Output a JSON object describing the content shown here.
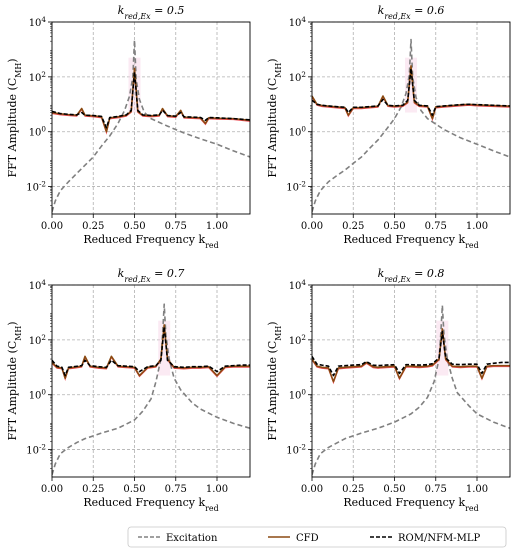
{
  "chart_data": [
    {
      "type": "line",
      "title": "k_red,Ex = 0.5",
      "xlabel": "Reduced Frequency k_red",
      "ylabel": "FFT Amplitude (C_MH)",
      "xscale": "linear",
      "yscale": "log",
      "xlim": [
        0.0,
        1.2
      ],
      "ylim": [
        0.001,
        10000
      ],
      "xticks": [
        "0.00",
        "0.25",
        "0.50",
        "0.75",
        "1.00"
      ],
      "yticks": [
        "10^-2",
        "10^0",
        "10^2",
        "10^4"
      ],
      "grid": true,
      "excitation_peak": 0.5,
      "series": [
        {
          "name": "Excitation",
          "color": "#808080",
          "style": "dashed",
          "x": [
            0.0,
            0.02,
            0.05,
            0.1,
            0.15,
            0.2,
            0.25,
            0.3,
            0.35,
            0.4,
            0.44,
            0.47,
            0.49,
            0.5,
            0.51,
            0.53,
            0.56,
            0.6,
            0.7,
            0.8,
            0.9,
            1.0,
            1.1,
            1.2
          ],
          "y": [
            0.0012,
            0.003,
            0.007,
            0.015,
            0.03,
            0.06,
            0.12,
            0.3,
            0.7,
            2.0,
            6,
            20,
            100,
            2200,
            80,
            15,
            5,
            3,
            1.6,
            0.9,
            0.55,
            0.35,
            0.2,
            0.12
          ]
        },
        {
          "name": "CFD",
          "color": "#8B4A12",
          "style": "solid",
          "x": [
            0.0,
            0.05,
            0.1,
            0.15,
            0.18,
            0.2,
            0.25,
            0.3,
            0.33,
            0.35,
            0.4,
            0.45,
            0.48,
            0.5,
            0.52,
            0.55,
            0.6,
            0.65,
            0.67,
            0.7,
            0.75,
            0.78,
            0.8,
            0.85,
            0.9,
            0.93,
            0.95,
            1.0,
            1.1,
            1.2
          ],
          "y": [
            5,
            4.5,
            4.2,
            4.0,
            7,
            4.0,
            3.8,
            3.5,
            1.0,
            3.2,
            3.5,
            4.0,
            5.5,
            200,
            5.5,
            4.0,
            3.8,
            4.0,
            7,
            3.8,
            3.6,
            6,
            3.4,
            3.3,
            3.2,
            2.0,
            3.2,
            3.1,
            3.0,
            2.6
          ]
        },
        {
          "name": "ROM/NFM-MLP",
          "color": "#000000",
          "style": "dashed",
          "x": [
            0.0,
            0.05,
            0.1,
            0.15,
            0.18,
            0.2,
            0.25,
            0.3,
            0.33,
            0.35,
            0.4,
            0.45,
            0.48,
            0.5,
            0.52,
            0.55,
            0.6,
            0.65,
            0.67,
            0.7,
            0.75,
            0.78,
            0.8,
            0.85,
            0.9,
            0.93,
            0.95,
            1.0,
            1.1,
            1.2
          ],
          "y": [
            5.5,
            4.6,
            4.3,
            4.1,
            5,
            4.0,
            3.9,
            3.6,
            1.4,
            3.3,
            3.6,
            4.1,
            6,
            150,
            6,
            4.1,
            3.9,
            4.1,
            6,
            3.9,
            3.7,
            5,
            3.5,
            3.4,
            3.3,
            2.6,
            3.3,
            3.2,
            3.0,
            2.7
          ]
        }
      ]
    },
    {
      "type": "line",
      "title": "k_red,Ex = 0.6",
      "xlabel": "Reduced Frequency k_red",
      "ylabel": "FFT Amplitude (C_MH)",
      "xscale": "linear",
      "yscale": "log",
      "xlim": [
        0.0,
        1.2
      ],
      "ylim": [
        0.001,
        10000
      ],
      "xticks": [
        "0.00",
        "0.25",
        "0.50",
        "0.75",
        "1.00"
      ],
      "yticks": [
        "10^-2",
        "10^0",
        "10^2",
        "10^4"
      ],
      "grid": true,
      "excitation_peak": 0.6,
      "series": [
        {
          "name": "Excitation",
          "color": "#808080",
          "style": "dashed",
          "x": [
            0.0,
            0.02,
            0.05,
            0.1,
            0.15,
            0.2,
            0.25,
            0.3,
            0.35,
            0.4,
            0.45,
            0.5,
            0.54,
            0.57,
            0.59,
            0.6,
            0.61,
            0.63,
            0.66,
            0.7,
            0.8,
            0.9,
            1.0,
            1.1,
            1.2
          ],
          "y": [
            0.0012,
            0.003,
            0.007,
            0.015,
            0.025,
            0.04,
            0.07,
            0.12,
            0.25,
            0.5,
            1.2,
            3,
            8,
            25,
            120,
            2300,
            100,
            18,
            6,
            3,
            1.2,
            0.6,
            0.35,
            0.2,
            0.12
          ]
        },
        {
          "name": "CFD",
          "color": "#8B4A12",
          "style": "solid",
          "x": [
            0.0,
            0.03,
            0.06,
            0.1,
            0.15,
            0.2,
            0.22,
            0.25,
            0.3,
            0.35,
            0.4,
            0.43,
            0.46,
            0.5,
            0.55,
            0.58,
            0.6,
            0.62,
            0.65,
            0.7,
            0.73,
            0.75,
            0.8,
            0.85,
            0.9,
            0.95,
            1.0,
            1.1,
            1.2
          ],
          "y": [
            20,
            10,
            9,
            8.5,
            8,
            7.5,
            4,
            7.5,
            7.5,
            8,
            8.5,
            20,
            9,
            8.5,
            9,
            12,
            250,
            12,
            9,
            8.5,
            3,
            8,
            8.5,
            9,
            9.5,
            10,
            9.5,
            9,
            8.5
          ]
        },
        {
          "name": "ROM/NFM-MLP",
          "color": "#000000",
          "style": "dashed",
          "x": [
            0.0,
            0.03,
            0.06,
            0.1,
            0.15,
            0.2,
            0.22,
            0.25,
            0.3,
            0.35,
            0.4,
            0.43,
            0.46,
            0.5,
            0.55,
            0.58,
            0.6,
            0.62,
            0.65,
            0.7,
            0.73,
            0.75,
            0.8,
            0.85,
            0.9,
            0.95,
            1.0,
            1.1,
            1.2
          ],
          "y": [
            14,
            10,
            9.2,
            8.7,
            8.2,
            7.8,
            5,
            7.8,
            7.8,
            8.2,
            8.7,
            15,
            9.2,
            8.7,
            9.2,
            14,
            200,
            14,
            9.2,
            8.7,
            4,
            8.2,
            8.7,
            9.2,
            9.7,
            10,
            9.7,
            9.2,
            8.7
          ]
        }
      ]
    },
    {
      "type": "line",
      "title": "k_red,Ex = 0.7",
      "xlabel": "Reduced Frequency k_red",
      "ylabel": "FFT Amplitude (C_MH)",
      "xscale": "linear",
      "yscale": "log",
      "xlim": [
        0.0,
        1.2
      ],
      "ylim": [
        0.001,
        10000
      ],
      "xticks": [
        "0.00",
        "0.25",
        "0.50",
        "0.75",
        "1.00"
      ],
      "yticks": [
        "10^-2",
        "10^0",
        "10^2",
        "10^4"
      ],
      "grid": true,
      "excitation_peak": 0.68,
      "series": [
        {
          "name": "Excitation",
          "color": "#808080",
          "style": "dashed",
          "x": [
            0.0,
            0.02,
            0.05,
            0.1,
            0.15,
            0.2,
            0.3,
            0.4,
            0.5,
            0.55,
            0.6,
            0.63,
            0.66,
            0.67,
            0.68,
            0.69,
            0.71,
            0.74,
            0.78,
            0.85,
            0.9,
            1.0,
            1.1,
            1.2
          ],
          "y": [
            0.0012,
            0.003,
            0.007,
            0.012,
            0.018,
            0.025,
            0.04,
            0.06,
            0.12,
            0.25,
            0.7,
            3,
            20,
            150,
            2000,
            150,
            20,
            4,
            1.5,
            0.5,
            0.3,
            0.15,
            0.09,
            0.06
          ]
        },
        {
          "name": "CFD",
          "color": "#8B4A12",
          "style": "solid",
          "x": [
            0.0,
            0.03,
            0.06,
            0.08,
            0.1,
            0.13,
            0.18,
            0.2,
            0.23,
            0.28,
            0.33,
            0.36,
            0.4,
            0.45,
            0.5,
            0.53,
            0.58,
            0.63,
            0.66,
            0.68,
            0.7,
            0.74,
            0.8,
            0.85,
            0.9,
            0.95,
            1.0,
            1.05,
            1.1,
            1.15,
            1.2
          ],
          "y": [
            15,
            10,
            9.5,
            4,
            9.5,
            10,
            11,
            25,
            11,
            10,
            9.5,
            25,
            11,
            10.5,
            10,
            5,
            10,
            11,
            20,
            350,
            20,
            10,
            9.5,
            10,
            10,
            10.5,
            5,
            10.5,
            11,
            11,
            11
          ]
        },
        {
          "name": "ROM/NFM-MLP",
          "color": "#000000",
          "style": "dashed",
          "x": [
            0.0,
            0.03,
            0.06,
            0.08,
            0.1,
            0.13,
            0.18,
            0.2,
            0.23,
            0.28,
            0.33,
            0.36,
            0.4,
            0.45,
            0.5,
            0.53,
            0.58,
            0.63,
            0.66,
            0.68,
            0.7,
            0.74,
            0.8,
            0.85,
            0.9,
            0.95,
            1.0,
            1.05,
            1.1,
            1.15,
            1.2
          ],
          "y": [
            18,
            11,
            10,
            5,
            10,
            10.5,
            11.5,
            18,
            11.5,
            10.5,
            10,
            18,
            11.5,
            11,
            10.5,
            7,
            10.5,
            11.5,
            18,
            300,
            18,
            10.5,
            10,
            10.5,
            10.5,
            11,
            7,
            11,
            11.5,
            12,
            12
          ]
        }
      ]
    },
    {
      "type": "line",
      "title": "k_red,Ex = 0.8",
      "xlabel": "Reduced Frequency k_red",
      "ylabel": "FFT Amplitude (C_MH)",
      "xscale": "linear",
      "yscale": "log",
      "xlim": [
        0.0,
        1.2
      ],
      "ylim": [
        0.001,
        10000
      ],
      "xticks": [
        "0.00",
        "0.25",
        "0.50",
        "0.75",
        "1.00"
      ],
      "yticks": [
        "10^-2",
        "10^0",
        "10^2",
        "10^4"
      ],
      "grid": true,
      "excitation_peak": 0.79,
      "series": [
        {
          "name": "Excitation",
          "color": "#808080",
          "style": "dashed",
          "x": [
            0.0,
            0.02,
            0.05,
            0.1,
            0.2,
            0.3,
            0.4,
            0.5,
            0.6,
            0.65,
            0.7,
            0.74,
            0.77,
            0.78,
            0.79,
            0.8,
            0.82,
            0.85,
            0.88,
            0.95,
            1.0,
            1.1,
            1.2
          ],
          "y": [
            0.0012,
            0.003,
            0.007,
            0.012,
            0.025,
            0.04,
            0.06,
            0.1,
            0.2,
            0.35,
            0.8,
            3,
            20,
            150,
            1800,
            150,
            20,
            4,
            1.2,
            0.4,
            0.2,
            0.1,
            0.06
          ]
        },
        {
          "name": "CFD",
          "color": "#8B4A12",
          "style": "solid",
          "x": [
            0.0,
            0.03,
            0.06,
            0.1,
            0.13,
            0.16,
            0.2,
            0.25,
            0.3,
            0.33,
            0.37,
            0.4,
            0.45,
            0.5,
            0.53,
            0.57,
            0.6,
            0.65,
            0.7,
            0.73,
            0.77,
            0.79,
            0.81,
            0.85,
            0.9,
            0.95,
            1.0,
            1.03,
            1.06,
            1.1,
            1.15,
            1.2
          ],
          "y": [
            20,
            11,
            10,
            9.5,
            3,
            9.5,
            10,
            10.5,
            11,
            15,
            10.5,
            10,
            10.5,
            11,
            4,
            11,
            11,
            10.5,
            11,
            12,
            20,
            250,
            20,
            11,
            10.5,
            11,
            11,
            4,
            11,
            11.5,
            11.5,
            11.5
          ]
        },
        {
          "name": "ROM/NFM-MLP",
          "color": "#000000",
          "style": "dashed",
          "x": [
            0.0,
            0.03,
            0.06,
            0.1,
            0.13,
            0.16,
            0.2,
            0.25,
            0.3,
            0.33,
            0.37,
            0.4,
            0.45,
            0.5,
            0.53,
            0.57,
            0.6,
            0.65,
            0.7,
            0.73,
            0.77,
            0.79,
            0.81,
            0.85,
            0.9,
            0.95,
            1.0,
            1.03,
            1.06,
            1.1,
            1.15,
            1.2
          ],
          "y": [
            25,
            13,
            12,
            11,
            5,
            11,
            11.5,
            12,
            12.5,
            16,
            12,
            11.5,
            12,
            12.5,
            6,
            12.5,
            12.5,
            12,
            12.5,
            13.5,
            22,
            200,
            22,
            13,
            12.5,
            13,
            13,
            6,
            13,
            14,
            15,
            15
          ]
        }
      ]
    }
  ],
  "legend": {
    "placement": "bottom-center",
    "entries": [
      {
        "label": "Excitation",
        "color": "#808080",
        "style": "dashed"
      },
      {
        "label": "CFD",
        "color": "#8B4A12",
        "style": "solid"
      },
      {
        "label": "ROM/NFM-MLP",
        "color": "#000000",
        "style": "dashed"
      }
    ]
  }
}
